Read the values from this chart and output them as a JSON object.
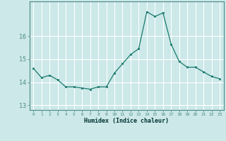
{
  "x": [
    0,
    1,
    2,
    3,
    4,
    5,
    6,
    7,
    8,
    9,
    10,
    11,
    12,
    13,
    14,
    15,
    16,
    17,
    18,
    19,
    20,
    21,
    22,
    23
  ],
  "y": [
    14.6,
    14.2,
    14.3,
    14.1,
    13.8,
    13.8,
    13.75,
    13.7,
    13.8,
    13.8,
    14.4,
    14.8,
    15.2,
    15.45,
    17.05,
    16.85,
    17.0,
    15.65,
    14.9,
    14.65,
    14.65,
    14.45,
    14.25,
    14.15
  ],
  "xlabel": "Humidex (Indice chaleur)",
  "ylim": [
    12.8,
    17.5
  ],
  "xlim": [
    -0.5,
    23.5
  ],
  "yticks": [
    13,
    14,
    15,
    16
  ],
  "xtick_labels": [
    "0",
    "1",
    "2",
    "3",
    "4",
    "5",
    "6",
    "7",
    "8",
    "9",
    "10",
    "11",
    "12",
    "13",
    "14",
    "15",
    "16",
    "17",
    "18",
    "19",
    "20",
    "21",
    "22",
    "23"
  ],
  "line_color": "#1a7a6e",
  "marker_color": "#1a7a6e",
  "bg_color": "#cce8e8",
  "grid_color": "#ffffff",
  "axis_color": "#4a8a84",
  "label_color": "#003333"
}
